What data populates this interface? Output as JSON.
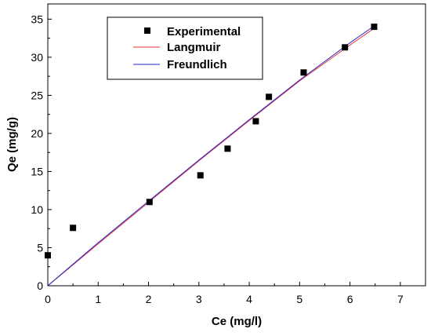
{
  "chart_data": {
    "type": "scatter",
    "xlabel": "Ce (mg/l)",
    "ylabel": "Qe (mg/g)",
    "xlim": [
      0,
      7.5
    ],
    "ylim": [
      0,
      37
    ],
    "x_ticks": [
      0,
      1,
      2,
      3,
      4,
      5,
      6,
      7
    ],
    "y_ticks": [
      0,
      5,
      10,
      15,
      20,
      25,
      30,
      35
    ],
    "grid": false,
    "legend_position": "top-left",
    "series": [
      {
        "name": "Experimental",
        "kind": "points",
        "color": "#000000",
        "x": [
          0.0,
          0.5,
          2.02,
          3.03,
          3.57,
          4.13,
          4.39,
          5.08,
          5.9,
          6.48
        ],
        "y": [
          4.0,
          7.6,
          11.0,
          14.5,
          18.0,
          21.6,
          24.8,
          28.0,
          31.3,
          34.0
        ]
      },
      {
        "name": "Langmuir",
        "kind": "line",
        "color": "#e8303a",
        "x": [
          0.0,
          1.0,
          2.0,
          3.0,
          4.0,
          5.0,
          6.0,
          6.48
        ],
        "y": [
          0.0,
          5.5,
          10.95,
          16.4,
          21.7,
          26.9,
          31.6,
          33.8
        ]
      },
      {
        "name": "Freundlich",
        "kind": "line",
        "color": "#2020c8",
        "x": [
          0.0,
          1.0,
          2.0,
          3.0,
          4.0,
          5.0,
          6.0,
          6.48
        ],
        "y": [
          0.0,
          5.65,
          11.1,
          16.5,
          21.8,
          27.0,
          31.9,
          34.1
        ]
      }
    ]
  }
}
